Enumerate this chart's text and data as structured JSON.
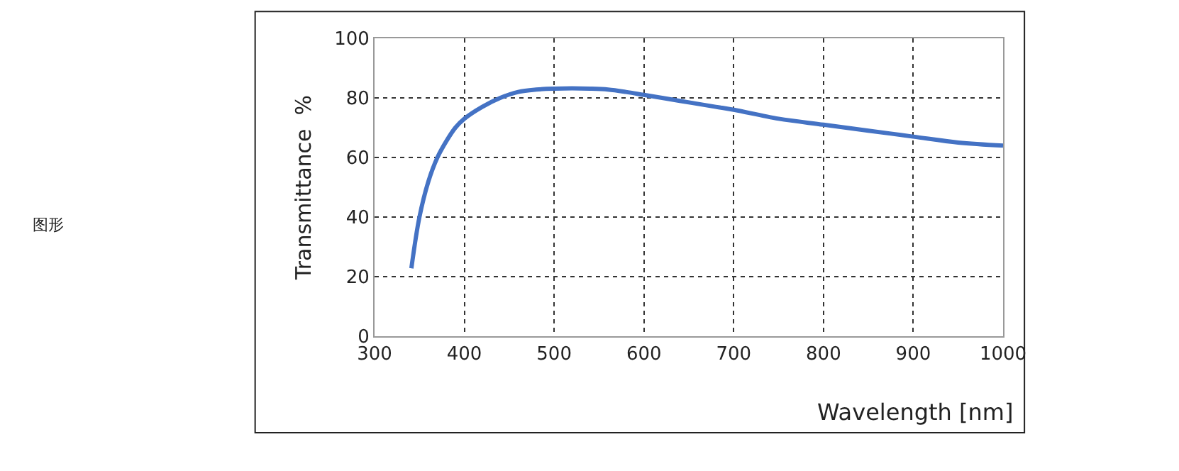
{
  "chart_data": {
    "type": "line",
    "xlabel": "Wavelength [nm]",
    "ylabel": "Transmittance  %",
    "annotations": [
      "图形"
    ],
    "x": [
      341,
      350,
      360,
      370,
      380,
      390,
      400,
      420,
      440,
      460,
      480,
      500,
      520,
      540,
      560,
      580,
      600,
      640,
      680,
      700,
      750,
      800,
      850,
      900,
      950,
      1000
    ],
    "series": [
      {
        "color": "#4472c4",
        "values": [
          22.8,
          40,
          52,
          60,
          65.5,
          70,
          73,
          77,
          80,
          82,
          82.8,
          83.1,
          83.2,
          83.1,
          82.8,
          82,
          81,
          79,
          77,
          76,
          73,
          71,
          69,
          67,
          65,
          64
        ]
      }
    ],
    "xlim": [
      300,
      1000
    ],
    "xticks": [
      300,
      400,
      500,
      600,
      700,
      800,
      900,
      1000
    ],
    "ylim": [
      0,
      100
    ],
    "yticks": [
      0,
      20,
      40,
      60,
      80,
      100
    ],
    "grid": true,
    "legend": false,
    "marker": "none",
    "line_style": "solid"
  }
}
